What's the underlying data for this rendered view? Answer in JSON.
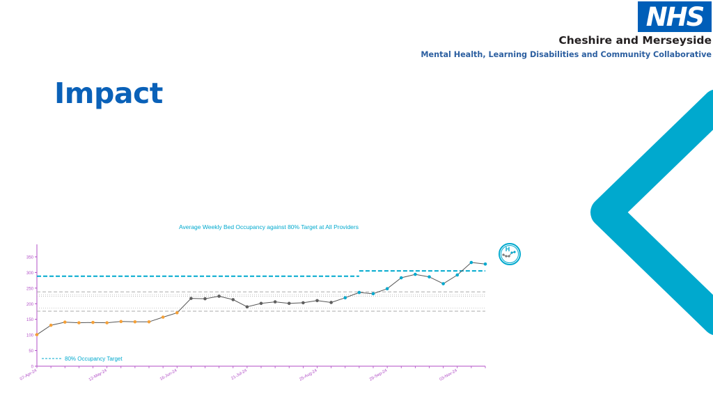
{
  "header": {
    "logo_text": "NHS",
    "org_name": "Cheshire and Merseyside",
    "collaborative": "Mental Health, Learning Disabilities and Community Collaborative"
  },
  "page": {
    "title": "Impact"
  },
  "colors": {
    "nhs_blue": "#005eb8",
    "title_blue": "#0a61b8",
    "teal": "#00a9ce",
    "orange": "#f5a037",
    "grey_line": "#5f5f5f",
    "axis_purple": "#b04cc6"
  },
  "icons": {
    "spc_icon": "spc-variation-icon",
    "decor": "chevron-left-shape"
  },
  "chart_data": {
    "type": "line",
    "title": "Average Weekly Bed Occupancy against 80% Target at All Providers",
    "xlabel": "",
    "ylabel": "",
    "ylim": [
      0,
      390
    ],
    "yticks": [
      0,
      50,
      100,
      150,
      200,
      250,
      300,
      350
    ],
    "xtick_labels": [
      "07-Apr-24",
      "12-May-24",
      "16-Jun-24",
      "21-Jul-24",
      "25-Aug-24",
      "29-Sep-24",
      "03-Nov-24"
    ],
    "xtick_index": [
      0,
      5,
      10,
      15,
      20,
      25,
      30
    ],
    "values": [
      101,
      131,
      141,
      139,
      140,
      139,
      143,
      142,
      142,
      157,
      171,
      217,
      216,
      224,
      213,
      190,
      201,
      206,
      201,
      203,
      210,
      204,
      219,
      236,
      232,
      248,
      283,
      294,
      286,
      264,
      292,
      332,
      327
    ],
    "point_colors": [
      "orange",
      "orange",
      "orange",
      "orange",
      "orange",
      "orange",
      "orange",
      "orange",
      "orange",
      "orange",
      "orange",
      "grey",
      "grey",
      "grey",
      "grey",
      "grey",
      "grey",
      "grey",
      "grey",
      "grey",
      "grey",
      "grey",
      "teal",
      "teal",
      "teal",
      "teal",
      "teal",
      "teal",
      "teal",
      "teal",
      "teal",
      "teal",
      "teal"
    ],
    "target_segments": [
      {
        "from": 0,
        "to": 23,
        "value": 288
      },
      {
        "from": 23,
        "to": 32,
        "value": 305
      }
    ],
    "control_limits": {
      "upper": 238,
      "upper_inner": 229,
      "mean": 224,
      "lower_inner": 186,
      "lower": 176
    },
    "legend": {
      "label": "80% Occupancy Target",
      "position": "bottom-left"
    },
    "grid": false
  }
}
